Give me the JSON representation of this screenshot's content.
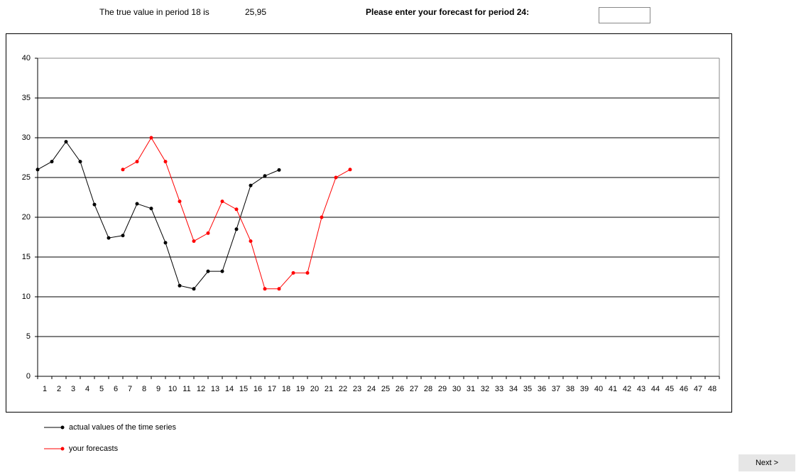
{
  "header": {
    "true_value_text": "The true value in period 18 is",
    "true_value": "25,95",
    "prompt": "Please enter your forecast for period 24:"
  },
  "chart_data": {
    "type": "line",
    "categories": [
      "1",
      "2",
      "3",
      "4",
      "5",
      "6",
      "7",
      "8",
      "9",
      "10",
      "11",
      "12",
      "13",
      "14",
      "15",
      "16",
      "17",
      "18",
      "19",
      "20",
      "21",
      "22",
      "23",
      "24",
      "25",
      "26",
      "27",
      "28",
      "29",
      "30",
      "31",
      "32",
      "33",
      "34",
      "35",
      "36",
      "37",
      "38",
      "39",
      "40",
      "41",
      "42",
      "43",
      "44",
      "45",
      "46",
      "47",
      "48"
    ],
    "series": [
      {
        "name": "actual values of the time series",
        "color": "#000000",
        "values": [
          26.0,
          27.0,
          29.5,
          27.0,
          21.6,
          17.4,
          17.7,
          21.7,
          21.1,
          16.8,
          11.4,
          11.0,
          13.2,
          13.2,
          18.5,
          24.0,
          25.2,
          25.95,
          null,
          null,
          null,
          null,
          null,
          null,
          null,
          null,
          null,
          null,
          null,
          null,
          null,
          null,
          null,
          null,
          null,
          null,
          null,
          null,
          null,
          null,
          null,
          null,
          null,
          null,
          null,
          null,
          null,
          null
        ]
      },
      {
        "name": "your forecasts",
        "color": "#ff0000",
        "values": [
          null,
          null,
          null,
          null,
          null,
          null,
          26,
          27,
          30,
          27,
          22,
          17,
          18,
          22,
          21,
          17,
          11,
          11,
          13,
          13,
          20,
          25,
          26,
          null,
          null,
          null,
          null,
          null,
          null,
          null,
          null,
          null,
          null,
          null,
          null,
          null,
          null,
          null,
          null,
          null,
          null,
          null,
          null,
          null,
          null,
          null,
          null,
          null
        ]
      }
    ],
    "ylim": [
      0,
      40
    ],
    "yticks": [
      0,
      5,
      10,
      15,
      20,
      25,
      30,
      35,
      40
    ],
    "grid": true,
    "legend": "bottom-left"
  },
  "button": "Next >"
}
